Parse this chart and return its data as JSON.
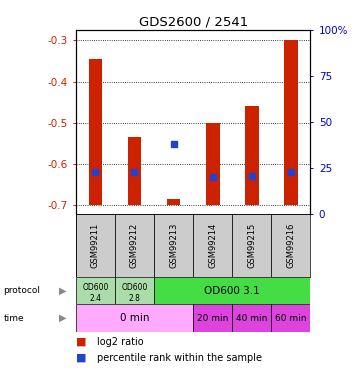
{
  "title": "GDS2600 / 2541",
  "samples": [
    "GSM99211",
    "GSM99212",
    "GSM99213",
    "GSM99214",
    "GSM99215",
    "GSM99216"
  ],
  "log2_ratio": [
    -0.345,
    -0.535,
    -0.685,
    -0.5,
    -0.46,
    -0.3
  ],
  "percentile_rank": [
    20,
    20,
    37,
    17,
    18,
    20
  ],
  "bar_bottom": -0.7,
  "ylim_left": [
    -0.72,
    -0.275
  ],
  "yticks_left": [
    -0.7,
    -0.6,
    -0.5,
    -0.4,
    -0.3
  ],
  "ylim_right": [
    0,
    100
  ],
  "yticks_right": [
    0,
    25,
    50,
    75,
    100
  ],
  "bar_color": "#CC2200",
  "blue_color": "#2244CC",
  "bg_color": "#ffffff",
  "left_label_color": "#CC2200",
  "right_label_color": "#0000CC",
  "bar_width": 0.35,
  "proto_color_light": "#aaddaa",
  "proto_color_dark": "#44dd44",
  "time_color_light": "#ffaaff",
  "time_color_dark": "#dd44dd",
  "sample_bg": "#cccccc",
  "legend_red": "#CC2200",
  "legend_blue": "#2244CC"
}
